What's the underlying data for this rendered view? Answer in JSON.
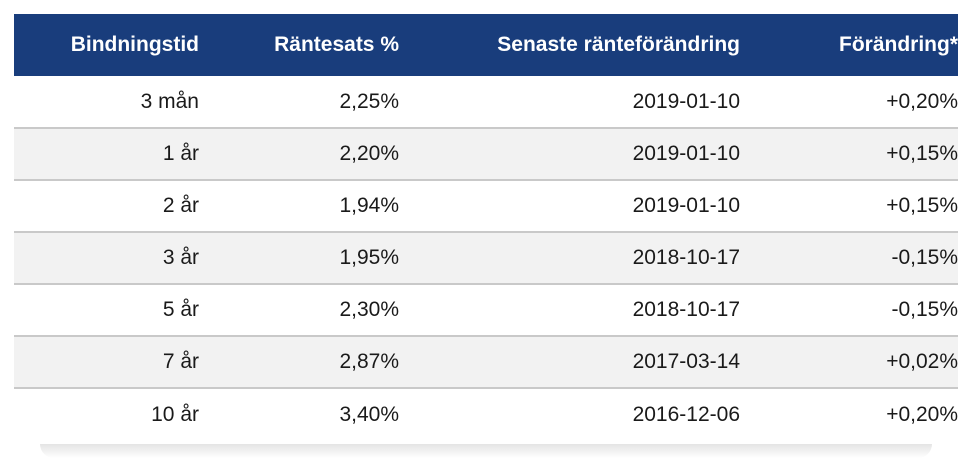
{
  "table": {
    "headers": [
      "Bindningstid",
      "Räntesats %",
      "Senaste ränteförändring",
      "Förändring*"
    ],
    "rows": [
      [
        "3 mån",
        "2,25%",
        "2019-01-10",
        "+0,20%"
      ],
      [
        "1 år",
        "2,20%",
        "2019-01-10",
        "+0,15%"
      ],
      [
        "2 år",
        "1,94%",
        "2019-01-10",
        "+0,15%"
      ],
      [
        "3 år",
        "1,95%",
        "2018-10-17",
        "-0,15%"
      ],
      [
        "5 år",
        "2,30%",
        "2018-10-17",
        "-0,15%"
      ],
      [
        "7 år",
        "2,87%",
        "2017-03-14",
        "+0,02%"
      ],
      [
        "10 år",
        "3,40%",
        "2016-12-06",
        "+0,20%"
      ]
    ]
  },
  "colors": {
    "header_bg": "#193d7c",
    "header_text": "#ffffff",
    "row_alt_bg": "#f2f2f2",
    "row_divider": "#c9c9c9"
  }
}
